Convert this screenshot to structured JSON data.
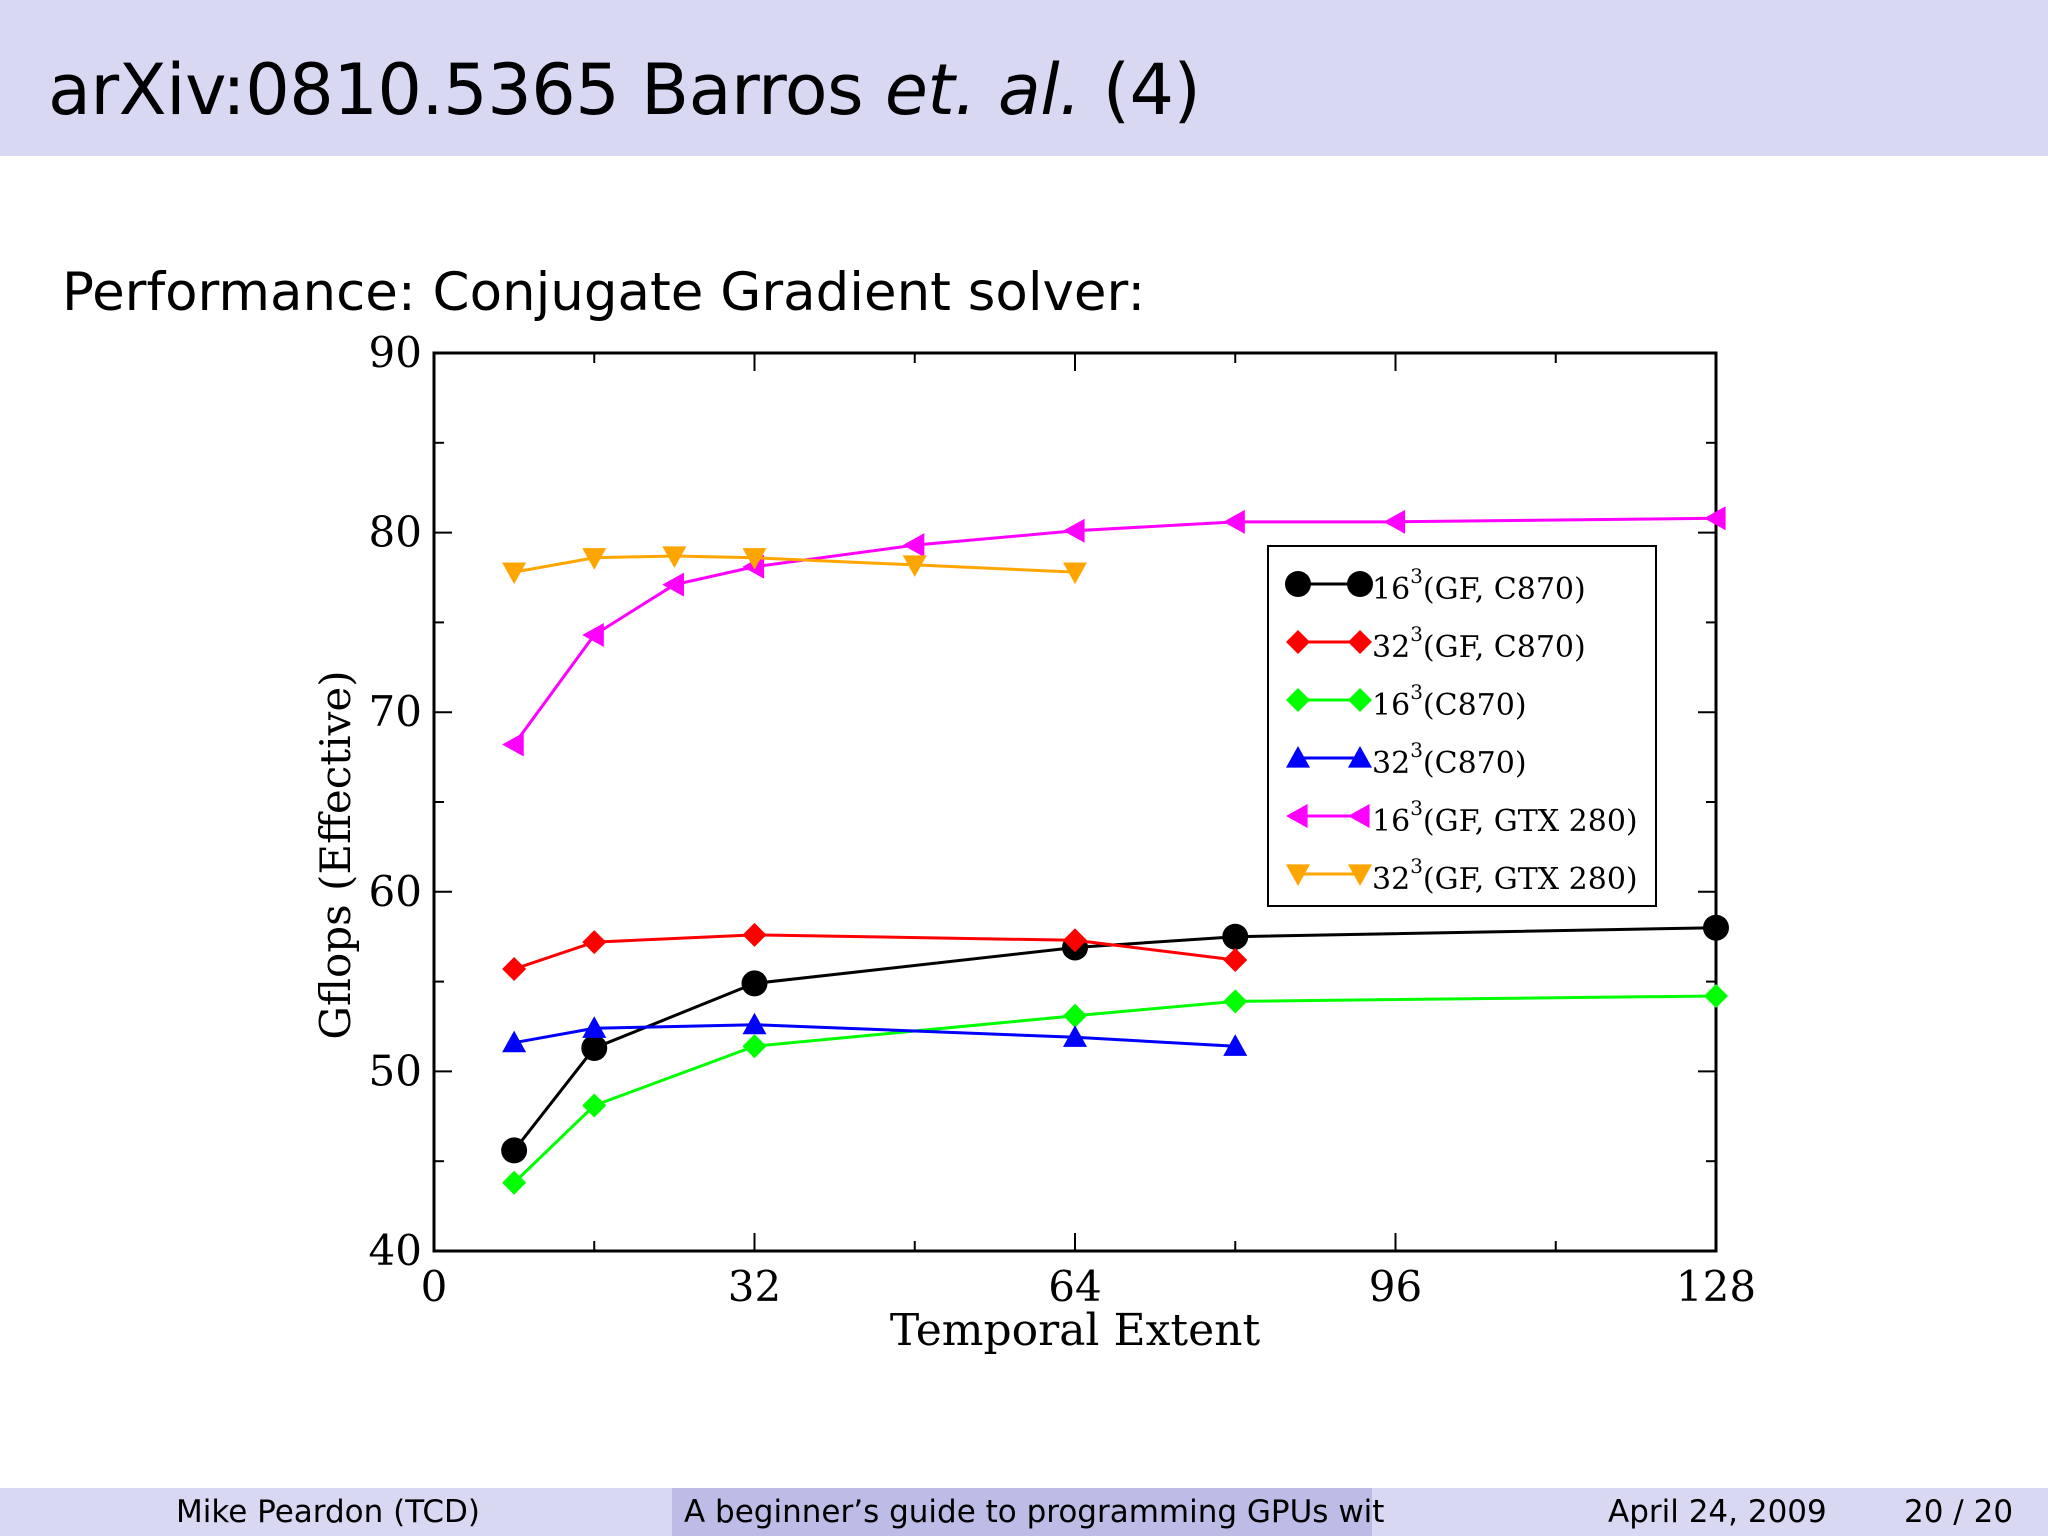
{
  "slide": {
    "title_main": "arXiv:0810.5365 Barros",
    "title_italic": "et. al.",
    "title_suffix": "(4)",
    "subtitle": "Performance: Conjugate Gradient solver:"
  },
  "footer": {
    "author": "Mike Peardon  (TCD)",
    "talk_title": "A beginner’s guide to programming GPUs wit",
    "date": "April 24, 2009",
    "page": "20 / 20"
  },
  "chart_data": {
    "type": "line",
    "xlabel": "Temporal Extent",
    "ylabel": "Gflops (Effective)",
    "xlim": [
      0,
      128
    ],
    "ylim": [
      40,
      90
    ],
    "xticks": [
      0,
      32,
      64,
      96,
      128
    ],
    "yticks": [
      40,
      50,
      60,
      70,
      80,
      90
    ],
    "legend_position": "right, upper-middle",
    "series": [
      {
        "base": "16",
        "exp": "3",
        "rest": "(GF, C870)",
        "color": "#000000",
        "marker": "circle",
        "x": [
          8,
          16,
          32,
          64,
          80,
          128
        ],
        "y": [
          45.6,
          51.3,
          54.9,
          56.9,
          57.5,
          58.0
        ]
      },
      {
        "base": "32",
        "exp": "3",
        "rest": "(GF, C870)",
        "color": "#ff0000",
        "marker": "diamond",
        "x": [
          8,
          16,
          32,
          64,
          80
        ],
        "y": [
          55.7,
          57.2,
          57.6,
          57.3,
          56.2
        ]
      },
      {
        "base": "16",
        "exp": "3",
        "rest": "(C870)",
        "color": "#00ff00",
        "marker": "diamond",
        "x": [
          8,
          16,
          32,
          64,
          80,
          128
        ],
        "y": [
          43.8,
          48.1,
          51.4,
          53.1,
          53.9,
          54.2
        ]
      },
      {
        "base": "32",
        "exp": "3",
        "rest": "(C870)",
        "color": "#0000ff",
        "marker": "triangle-up",
        "x": [
          8,
          16,
          32,
          64,
          80
        ],
        "y": [
          51.6,
          52.4,
          52.6,
          51.9,
          51.4
        ]
      },
      {
        "base": "16",
        "exp": "3",
        "rest": "(GF, GTX 280)",
        "color": "#ff00ff",
        "marker": "triangle-left",
        "x": [
          8,
          16,
          24,
          32,
          48,
          64,
          80,
          96,
          128
        ],
        "y": [
          68.2,
          74.3,
          77.1,
          78.1,
          79.3,
          80.1,
          80.6,
          80.6,
          80.8
        ]
      },
      {
        "base": "32",
        "exp": "3",
        "rest": "(GF, GTX 280)",
        "color": "#ffa500",
        "marker": "triangle-down",
        "x": [
          8,
          16,
          24,
          32,
          48,
          64
        ],
        "y": [
          77.8,
          78.6,
          78.7,
          78.6,
          78.2,
          77.8
        ]
      }
    ]
  }
}
